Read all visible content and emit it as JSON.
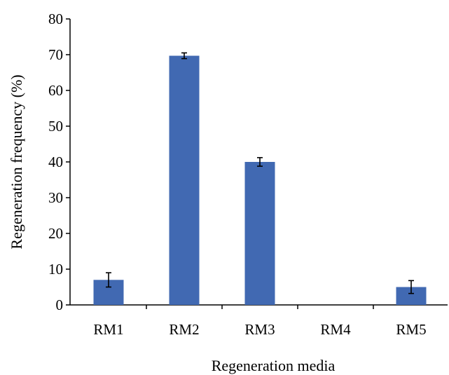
{
  "chart_data": {
    "type": "bar",
    "categories": [
      "RM1",
      "RM2",
      "RM3",
      "RM4",
      "RM5"
    ],
    "values": [
      7.0,
      69.7,
      40.0,
      0,
      5.0
    ],
    "error": [
      2.0,
      0.8,
      1.2,
      0,
      1.8
    ],
    "xlabel": "Regeneration media",
    "ylabel": "Regeneration frequency (%)",
    "ylim": [
      0,
      80
    ],
    "yticks": [
      0,
      10,
      20,
      30,
      40,
      50,
      60,
      70,
      80
    ],
    "grid": false,
    "bar_color": "#4169B2"
  }
}
